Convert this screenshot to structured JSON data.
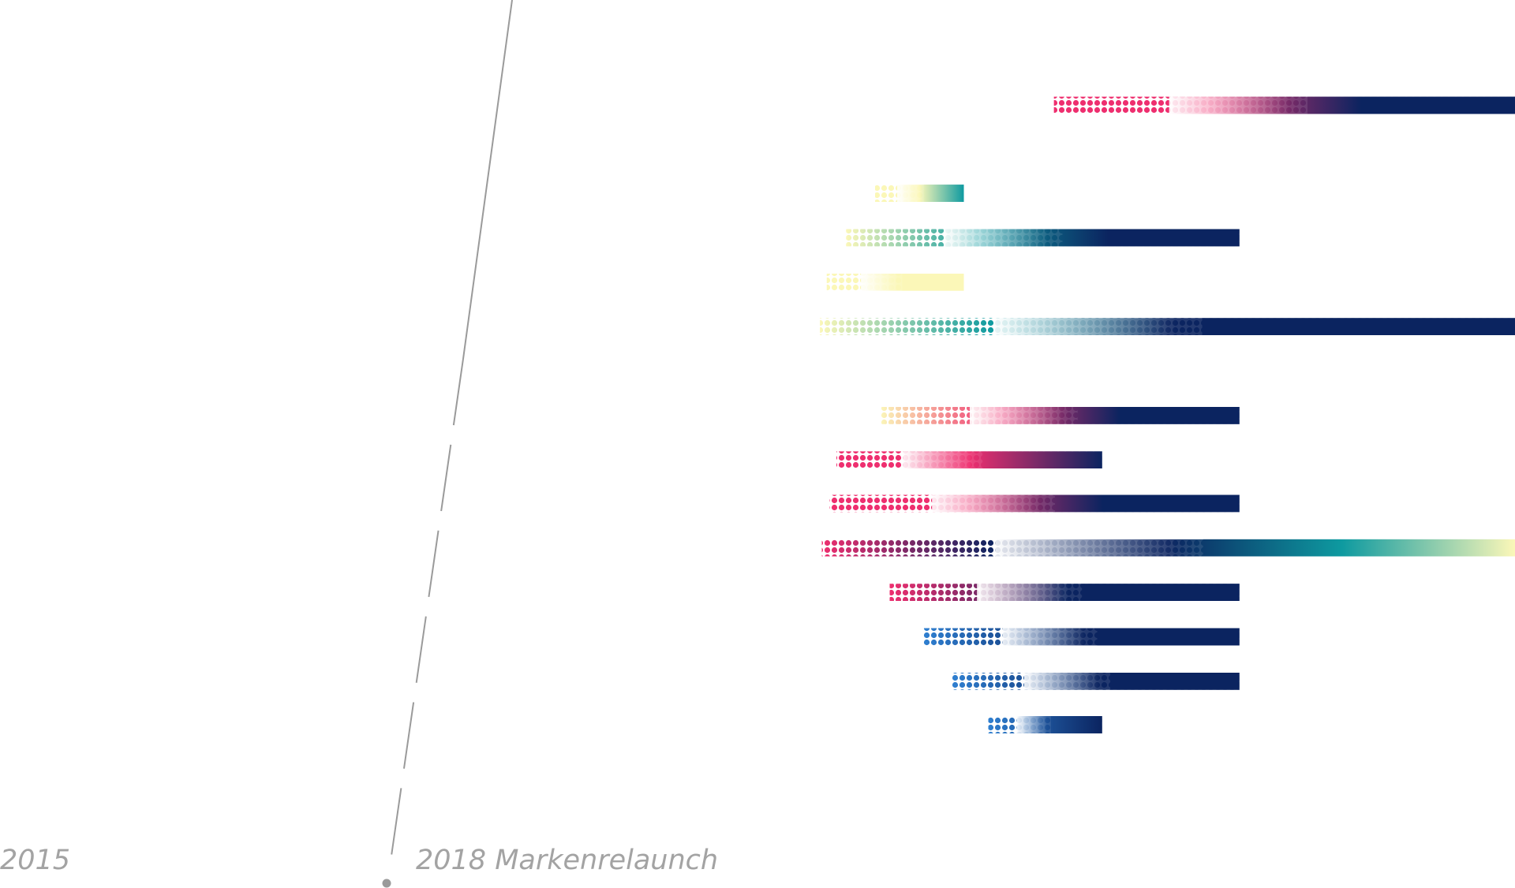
{
  "timeline": {
    "labels": [
      "2015",
      "2018 Markenrelaunch"
    ]
  }
}
